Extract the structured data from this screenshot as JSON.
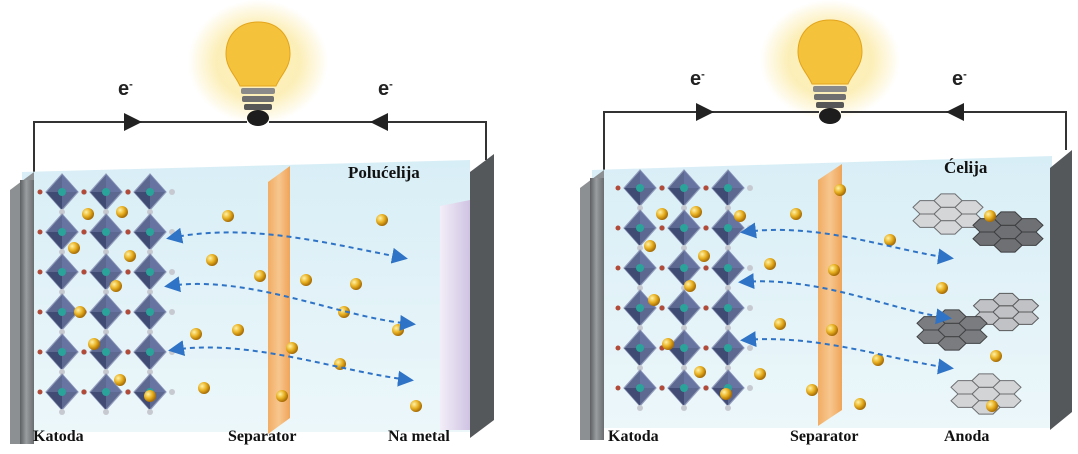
{
  "panels": [
    {
      "title": "Polućelija",
      "electron_left": "e",
      "electron_right": "e",
      "electron_sup": "-",
      "label_cathode": "Katoda",
      "label_separator": "Separator",
      "label_anode": "Na metal",
      "anode_kind": "sodium-metal-plate"
    },
    {
      "title": "Ćelija",
      "electron_left": "e",
      "electron_right": "e",
      "electron_sup": "-",
      "label_cathode": "Katoda",
      "label_separator": "Separator",
      "label_anode": "Anoda",
      "anode_kind": "layered-hexagonal-sheets"
    }
  ],
  "colors": {
    "electrolyte": "#dff1f7",
    "separator": "#f6b46e",
    "electrode": "#7f8285",
    "ion": "#e0a21a",
    "arrow": "#2f73c6",
    "bulb": "#f5c23c",
    "glow": "#fbe9a0",
    "na_metal": "#e4dcf0"
  }
}
